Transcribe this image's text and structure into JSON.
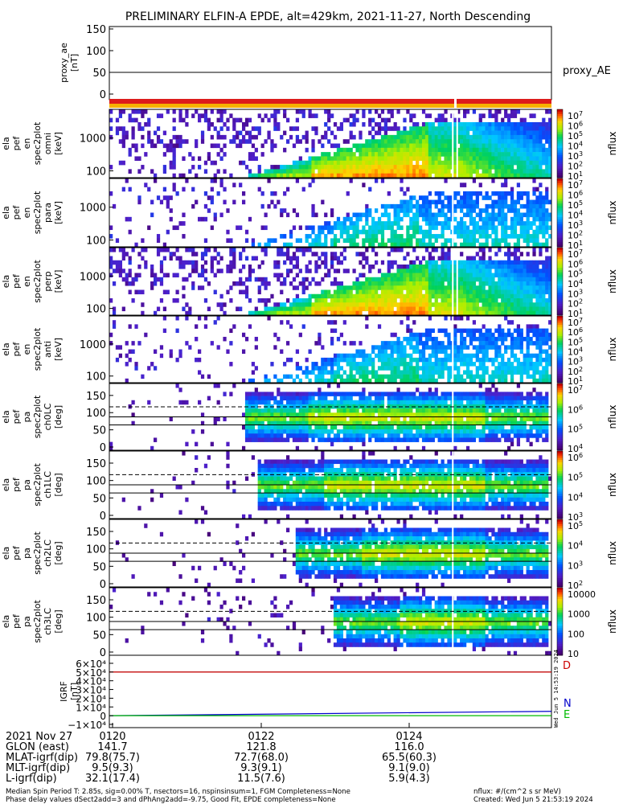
{
  "chart_data": {
    "type": "heatmap",
    "title": "PRELIMINARY ELFIN-A EPDE, alt=429km, 2021-11-27, North Descending",
    "panels": [
      {
        "id": "proxy_ae",
        "type": "line",
        "ylabel": [
          "proxy_ae",
          "[nT]"
        ],
        "ylim": [
          0,
          150
        ],
        "yticks": [
          0,
          50,
          100,
          150
        ],
        "ytick_labels": [
          "0",
          "50",
          "100",
          "150"
        ],
        "series": [
          {
            "name": "proxy_AE",
            "values": [
              50,
              50
            ],
            "color": "#000000"
          }
        ]
      },
      {
        "id": "energy-omni",
        "type": "heatmap",
        "ylabel": [
          "ela",
          "pef",
          "en",
          "spec2plot",
          "omni",
          "[keV]"
        ],
        "yticks": [
          100,
          1000
        ],
        "ytick_labels": [
          "100",
          "1000"
        ],
        "colorbar": {
          "label": "nflux",
          "labels": [
            "10^7",
            "10^6",
            "10^5",
            "10^4",
            "10^3",
            "10^2",
            "10^1"
          ]
        }
      },
      {
        "id": "energy-para",
        "type": "heatmap",
        "ylabel": [
          "ela",
          "pef",
          "en",
          "spec2plot",
          "para",
          "[keV]"
        ],
        "yticks": [
          100,
          1000
        ],
        "ytick_labels": [
          "100",
          "1000"
        ],
        "colorbar": {
          "label": "nflux",
          "labels": [
            "10^7",
            "10^6",
            "10^5",
            "10^4",
            "10^3",
            "10^2",
            "10^1"
          ]
        }
      },
      {
        "id": "energy-perp",
        "type": "heatmap",
        "ylabel": [
          "ela",
          "pef",
          "en",
          "spec2plot",
          "perp",
          "[keV]"
        ],
        "yticks": [
          100,
          1000
        ],
        "ytick_labels": [
          "100",
          "1000"
        ],
        "colorbar": {
          "label": "nflux",
          "labels": [
            "10^7",
            "10^6",
            "10^5",
            "10^4",
            "10^3",
            "10^2",
            "10^1"
          ]
        }
      },
      {
        "id": "energy-anti",
        "type": "heatmap",
        "ylabel": [
          "ela",
          "pef",
          "en",
          "spec2plot",
          "anti",
          "[keV]"
        ],
        "yticks": [
          100,
          1000
        ],
        "ytick_labels": [
          "100",
          "1000"
        ],
        "colorbar": {
          "label": "nflux",
          "labels": [
            "10^7",
            "10^6",
            "10^5",
            "10^4",
            "10^3",
            "10^2",
            "10^1"
          ]
        }
      },
      {
        "id": "pa-ch0",
        "type": "heatmap",
        "ylabel": [
          "ela",
          "pef",
          "pa",
          "spec2plot",
          "ch0LC",
          "[deg]"
        ],
        "ylim": [
          0,
          180
        ],
        "yticks": [
          0,
          50,
          100,
          150
        ],
        "ytick_labels": [
          "0",
          "50",
          "100",
          "150"
        ],
        "colorbar": {
          "label": "nflux",
          "labels": [
            "10^7",
            "10^6",
            "10^5",
            "10^4"
          ]
        }
      },
      {
        "id": "pa-ch1",
        "type": "heatmap",
        "ylabel": [
          "ela",
          "pef",
          "pa",
          "spec2plot",
          "ch1LC",
          "[deg]"
        ],
        "ylim": [
          0,
          180
        ],
        "yticks": [
          0,
          50,
          100,
          150
        ],
        "ytick_labels": [
          "0",
          "50",
          "100",
          "150"
        ],
        "colorbar": {
          "label": "nflux",
          "labels": [
            "10^6",
            "10^5",
            "10^4",
            "10^3"
          ]
        }
      },
      {
        "id": "pa-ch2",
        "type": "heatmap",
        "ylabel": [
          "ela",
          "pef",
          "pa",
          "spec2plot",
          "ch2LC",
          "[deg]"
        ],
        "ylim": [
          0,
          180
        ],
        "yticks": [
          0,
          50,
          100,
          150
        ],
        "ytick_labels": [
          "0",
          "50",
          "100",
          "150"
        ],
        "colorbar": {
          "label": "nflux",
          "labels": [
            "10^5",
            "10^4",
            "10^3",
            "10^2"
          ]
        }
      },
      {
        "id": "pa-ch3",
        "type": "heatmap",
        "ylabel": [
          "ela",
          "pef",
          "pa",
          "spec2plot",
          "ch3LC",
          "[deg]"
        ],
        "ylim": [
          0,
          180
        ],
        "yticks": [
          0,
          50,
          100,
          150
        ],
        "ytick_labels": [
          "0",
          "50",
          "100",
          "150"
        ],
        "colorbar": {
          "label": "nflux",
          "labels": [
            "10000",
            "1000",
            "100",
            "10"
          ]
        }
      },
      {
        "id": "igrf",
        "type": "line",
        "ylabel": [
          "IGRF",
          "[nT]"
        ],
        "ylim": [
          -10000,
          60000
        ],
        "yticks": [
          -10000,
          0,
          10000,
          20000,
          30000,
          40000,
          50000,
          60000
        ],
        "ytick_labels": [
          "−1×10⁴",
          "0",
          "1×10⁴",
          "2×10⁴",
          "3×10⁴",
          "4×10⁴",
          "5×10⁴",
          "6×10⁴"
        ],
        "series": [
          {
            "name": "D",
            "color": "#cc0000",
            "values": [
              50000,
              50000
            ]
          },
          {
            "name": "N",
            "color": "#0000cc",
            "values": [
              0,
              5000
            ]
          },
          {
            "name": "E",
            "color": "#00bb00",
            "values": [
              0,
              0
            ]
          }
        ]
      }
    ],
    "x_ticks": [
      "0120",
      "0122",
      "0124"
    ],
    "orbit_table": {
      "row_labels": [
        "2021 Nov 27",
        "GLON (east)",
        "MLAT-igrf(dip)",
        "MLT-igrf(dip)",
        "L-igrf(dip)"
      ],
      "columns": [
        [
          "0120",
          "141.7",
          "79.8(75.7)",
          "9.5(9.3)",
          "32.1(17.4)"
        ],
        [
          "0122",
          "121.8",
          "72.7(68.0)",
          "9.3(9.1)",
          "11.5(7.6)"
        ],
        [
          "0124",
          "116.0",
          "65.5(60.3)",
          "9.1(9.0)",
          "5.9(4.3)"
        ]
      ]
    },
    "footer": {
      "line1": "Median Spin Period T: 2.85s, sig=0.00% T, nsectors=16, nspinsinsum=1, FGM Completeness=None",
      "line2": "Phase delay values dSect2add=3 and dPhAng2add=-9.75, Good Fit, EPDE completeness=None",
      "units": "nflux: #/(cm^2 s sr MeV)",
      "created": "Created: Wed Jun  5 21:53:19 2024"
    },
    "side_stamp": "Wed Jun  5 14:53:19 2024"
  }
}
